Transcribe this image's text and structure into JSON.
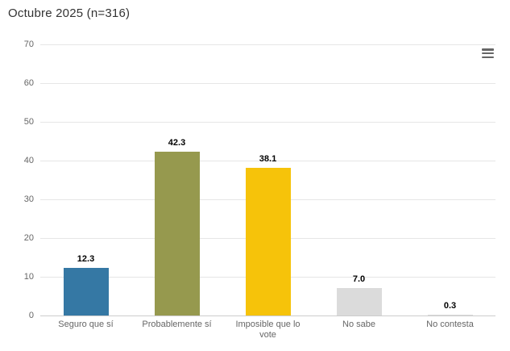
{
  "header": {
    "title": "Octubre 2025 (n=316)"
  },
  "toolbar": {
    "context_menu_icon": "hamburger-menu-icon"
  },
  "colors": {
    "background": "#ffffff",
    "title_text": "#333333",
    "axis_label_text": "#666666",
    "gridline": "#e6e6e6",
    "axis_line": "#cccccc",
    "data_label_text": "#000000",
    "menu_icon": "#666666"
  },
  "chart_data": {
    "type": "bar",
    "title": "Octubre 2025 (n=316)",
    "categories": [
      "Seguro que sí",
      "Probablemente sí",
      "Imposible que lo vote",
      "No sabe",
      "No contesta"
    ],
    "values": [
      12.3,
      42.3,
      38.1,
      7.0,
      0.3
    ],
    "value_labels": [
      "12.3",
      "42.3",
      "38.1",
      "7.0",
      "0.3"
    ],
    "bar_colors": [
      "#3578a4",
      "#96994e",
      "#f6c30a",
      "#dbdbdb",
      "#dbdbdb"
    ],
    "xlabel": "",
    "ylabel": "",
    "ylim": [
      0,
      70
    ],
    "yticks": [
      0,
      10,
      20,
      30,
      40,
      50,
      60,
      70
    ],
    "grid": true,
    "legend": false
  }
}
